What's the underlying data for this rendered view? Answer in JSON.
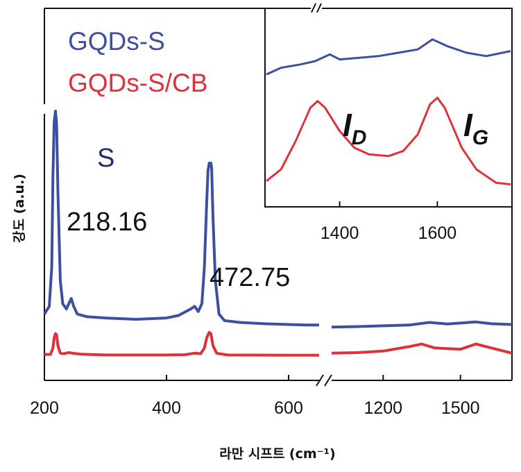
{
  "chart_data": {
    "type": "line",
    "xlabel": "라만 시프트 (cm⁻¹)",
    "ylabel": "강도 (a.u.)",
    "axis_break": true,
    "x_segments": [
      {
        "range": [
          200,
          650
        ],
        "ticks": [
          200,
          400,
          600
        ]
      },
      {
        "range": [
          1000,
          1700
        ],
        "ticks": [
          1200,
          1500
        ]
      }
    ],
    "legend": {
      "placement": "top-left",
      "entries": [
        {
          "name": "GQDs-S",
          "color": "#3d4fa3"
        },
        {
          "name": "GQDs-S/CB",
          "color": "#e0313b"
        }
      ]
    },
    "annotations": {
      "peak_label": "S",
      "peak1": "218.16",
      "peak2": "472.75"
    },
    "series": [
      {
        "name": "GQDs-S",
        "color": "#3d4fa3",
        "points": [
          [
            200,
            0.22
          ],
          [
            208,
            0.25
          ],
          [
            212,
            0.4
          ],
          [
            214,
            0.75
          ],
          [
            216,
            0.96
          ],
          [
            218.16,
            1.0
          ],
          [
            220,
            0.95
          ],
          [
            222,
            0.7
          ],
          [
            226,
            0.35
          ],
          [
            230,
            0.26
          ],
          [
            236,
            0.24
          ],
          [
            240,
            0.26
          ],
          [
            244,
            0.28
          ],
          [
            248,
            0.25
          ],
          [
            254,
            0.22
          ],
          [
            270,
            0.21
          ],
          [
            300,
            0.205
          ],
          [
            350,
            0.2
          ],
          [
            400,
            0.205
          ],
          [
            420,
            0.215
          ],
          [
            440,
            0.24
          ],
          [
            446,
            0.25
          ],
          [
            452,
            0.23
          ],
          [
            458,
            0.26
          ],
          [
            462,
            0.4
          ],
          [
            466,
            0.66
          ],
          [
            468,
            0.77
          ],
          [
            470,
            0.8
          ],
          [
            472.75,
            0.8
          ],
          [
            474,
            0.78
          ],
          [
            476,
            0.6
          ],
          [
            480,
            0.35
          ],
          [
            486,
            0.22
          ],
          [
            495,
            0.195
          ],
          [
            520,
            0.188
          ],
          [
            560,
            0.183
          ],
          [
            600,
            0.18
          ],
          [
            630,
            0.178
          ],
          [
            650,
            0.178
          ],
          [
            1000,
            0.17
          ],
          [
            1100,
            0.172
          ],
          [
            1200,
            0.175
          ],
          [
            1300,
            0.178
          ],
          [
            1380,
            0.188
          ],
          [
            1450,
            0.182
          ],
          [
            1560,
            0.19
          ],
          [
            1620,
            0.183
          ],
          [
            1700,
            0.18
          ]
        ]
      },
      {
        "name": "GQDs-S/CB",
        "color": "#e0313b",
        "points": [
          [
            200,
            0.065
          ],
          [
            210,
            0.065
          ],
          [
            214,
            0.09
          ],
          [
            216,
            0.13
          ],
          [
            218.16,
            0.145
          ],
          [
            220,
            0.14
          ],
          [
            222,
            0.1
          ],
          [
            226,
            0.07
          ],
          [
            232,
            0.068
          ],
          [
            240,
            0.072
          ],
          [
            246,
            0.07
          ],
          [
            260,
            0.066
          ],
          [
            300,
            0.063
          ],
          [
            400,
            0.063
          ],
          [
            430,
            0.064
          ],
          [
            446,
            0.07
          ],
          [
            456,
            0.068
          ],
          [
            462,
            0.09
          ],
          [
            466,
            0.13
          ],
          [
            470,
            0.15
          ],
          [
            472.75,
            0.145
          ],
          [
            476,
            0.1
          ],
          [
            482,
            0.07
          ],
          [
            500,
            0.063
          ],
          [
            600,
            0.062
          ],
          [
            650,
            0.062
          ],
          [
            1000,
            0.07
          ],
          [
            1100,
            0.072
          ],
          [
            1200,
            0.078
          ],
          [
            1300,
            0.095
          ],
          [
            1350,
            0.105
          ],
          [
            1400,
            0.09
          ],
          [
            1500,
            0.085
          ],
          [
            1560,
            0.105
          ],
          [
            1600,
            0.095
          ],
          [
            1700,
            0.07
          ]
        ]
      }
    ],
    "inset": {
      "x_range": [
        1250,
        1750
      ],
      "ticks": [
        1400,
        1600
      ],
      "band_labels": [
        "D",
        "G"
      ],
      "series": [
        {
          "name": "GQDs-S",
          "color": "#3d4fa3",
          "points": [
            [
              1250,
              0.72
            ],
            [
              1280,
              0.76
            ],
            [
              1320,
              0.78
            ],
            [
              1350,
              0.8
            ],
            [
              1380,
              0.84
            ],
            [
              1400,
              0.81
            ],
            [
              1440,
              0.82
            ],
            [
              1480,
              0.83
            ],
            [
              1520,
              0.85
            ],
            [
              1560,
              0.87
            ],
            [
              1590,
              0.93
            ],
            [
              1620,
              0.89
            ],
            [
              1660,
              0.85
            ],
            [
              1700,
              0.83
            ],
            [
              1750,
              0.86
            ]
          ]
        },
        {
          "name": "GQDs-S/CB",
          "color": "#e0313b",
          "points": [
            [
              1250,
              0.08
            ],
            [
              1280,
              0.15
            ],
            [
              1310,
              0.32
            ],
            [
              1340,
              0.52
            ],
            [
              1355,
              0.56
            ],
            [
              1370,
              0.52
            ],
            [
              1400,
              0.38
            ],
            [
              1430,
              0.28
            ],
            [
              1460,
              0.24
            ],
            [
              1500,
              0.23
            ],
            [
              1530,
              0.26
            ],
            [
              1560,
              0.36
            ],
            [
              1585,
              0.54
            ],
            [
              1600,
              0.58
            ],
            [
              1615,
              0.52
            ],
            [
              1650,
              0.28
            ],
            [
              1680,
              0.15
            ],
            [
              1720,
              0.07
            ],
            [
              1750,
              0.06
            ]
          ]
        }
      ]
    }
  }
}
